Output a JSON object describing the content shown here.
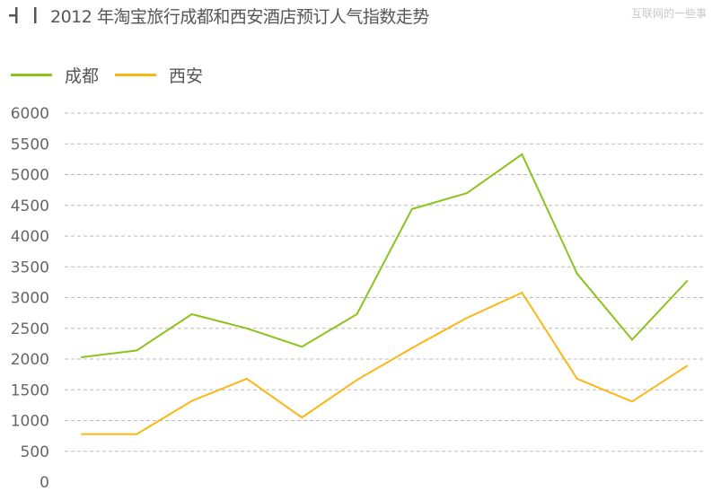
{
  "header": {
    "title": "2012 年淘宝旅行成都和西安酒店预订人气指数走势",
    "watermark": "互联网的一些事"
  },
  "chart_data": {
    "type": "line",
    "title": "2012 年淘宝旅行成都和西安酒店预订人气指数走势",
    "xlabel": "",
    "ylabel": "",
    "x": [
      1,
      2,
      3,
      4,
      5,
      6,
      7,
      8,
      9,
      10,
      11,
      12
    ],
    "ylim": [
      0,
      6000
    ],
    "yticks": [
      "0",
      "500",
      "1000",
      "1500",
      "2000",
      "2500",
      "3000",
      "3500",
      "4000",
      "4500",
      "5000",
      "5500",
      "6000"
    ],
    "grid": true,
    "legend_position": "top-left",
    "series": [
      {
        "name": "成都",
        "color": "#8dc21f",
        "values": [
          2030,
          2140,
          2730,
          2500,
          2200,
          2730,
          4440,
          4700,
          5330,
          3390,
          2315,
          3270
        ]
      },
      {
        "name": "西安",
        "color": "#fbb714",
        "values": [
          780,
          780,
          1320,
          1680,
          1050,
          1660,
          2180,
          2670,
          3080,
          1680,
          1310,
          1890
        ]
      }
    ]
  }
}
